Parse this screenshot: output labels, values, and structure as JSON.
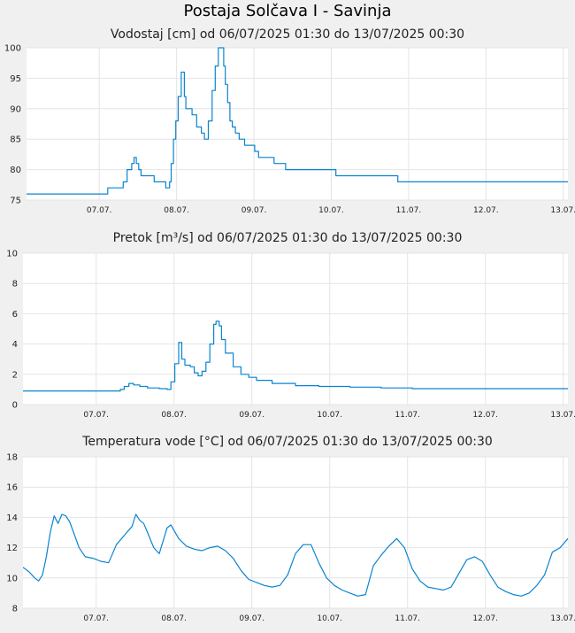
{
  "page": {
    "title": "Postaja Solčava I - Savinja"
  },
  "colors": {
    "line": "#0a84cf",
    "plot_background": "#ffffff",
    "page_background": "#f0f0f0",
    "grid": "#e4e4e4"
  },
  "chart_data": [
    {
      "type": "line",
      "title": "Vodostaj [cm] od 06/07/2025 01:30 do 13/07/2025 00:30",
      "xlabel": "",
      "ylabel": "",
      "ylim": [
        75,
        100
      ],
      "yticks": [
        75,
        80,
        85,
        90,
        95,
        100
      ],
      "xlim": [
        0,
        7.0
      ],
      "xticks": [
        {
          "x": 0.94,
          "label": "07.07."
        },
        {
          "x": 1.94,
          "label": "08.07."
        },
        {
          "x": 2.94,
          "label": "09.07."
        },
        {
          "x": 3.94,
          "label": "10.07."
        },
        {
          "x": 4.94,
          "label": "11.07."
        },
        {
          "x": 5.94,
          "label": "12.07."
        },
        {
          "x": 6.94,
          "label": "13.07."
        }
      ],
      "grid": true,
      "step": true,
      "series": [
        {
          "x": [
            0,
            1.04,
            1.05,
            1.24,
            1.25,
            1.3,
            1.33,
            1.36,
            1.39,
            1.42,
            1.45,
            1.48,
            1.55,
            1.65,
            1.66,
            1.78,
            1.8,
            1.85,
            1.87,
            1.9,
            1.93,
            1.96,
            2.0,
            2.04,
            2.06,
            2.08,
            2.11,
            2.14,
            2.2,
            2.26,
            2.3,
            2.35,
            2.4,
            2.44,
            2.48,
            2.52,
            2.55,
            2.57,
            2.6,
            2.63,
            2.66,
            2.7,
            2.75,
            2.82,
            2.9,
            2.95,
            3.0,
            3.1,
            3.2,
            3.25,
            3.35,
            3.45,
            3.6,
            3.75,
            3.9,
            4.0,
            4.02,
            4.1,
            4.15,
            4.3,
            4.6,
            4.7,
            4.8,
            4.9,
            5.1,
            5.5,
            5.9,
            6.3,
            6.6,
            6.7,
            7.0
          ],
          "y": [
            76,
            76,
            77,
            77,
            78,
            80,
            80,
            81,
            82,
            81,
            80,
            79,
            79,
            78,
            78,
            78,
            77,
            78,
            81,
            85,
            88,
            92,
            96,
            92,
            90,
            90,
            90,
            89,
            87,
            86,
            85,
            88,
            93,
            97,
            100,
            100,
            97,
            94,
            91,
            88,
            87,
            86,
            85,
            84,
            84,
            83,
            82,
            82,
            81,
            81,
            80,
            80,
            80,
            80,
            80,
            79,
            79,
            79,
            79,
            79,
            79,
            79,
            78,
            78,
            78,
            78,
            78,
            78,
            78,
            78,
            78
          ]
        }
      ]
    },
    {
      "type": "line",
      "title": "Pretok [m³/s] od 06/07/2025 01:30 do 13/07/2025 00:30",
      "xlabel": "",
      "ylabel": "",
      "ylim": [
        0,
        10
      ],
      "yticks": [
        0,
        2,
        4,
        6,
        8,
        10
      ],
      "xlim": [
        0,
        7.0
      ],
      "xticks": [
        {
          "x": 0.94,
          "label": "07.07."
        },
        {
          "x": 1.94,
          "label": "08.07."
        },
        {
          "x": 2.94,
          "label": "09.07."
        },
        {
          "x": 3.94,
          "label": "10.07."
        },
        {
          "x": 4.94,
          "label": "11.07."
        },
        {
          "x": 5.94,
          "label": "12.07."
        },
        {
          "x": 6.94,
          "label": "13.07."
        }
      ],
      "grid": true,
      "step": true,
      "series": [
        {
          "x": [
            0,
            1.0,
            1.25,
            1.3,
            1.36,
            1.42,
            1.5,
            1.6,
            1.75,
            1.85,
            1.9,
            1.95,
            2.0,
            2.04,
            2.08,
            2.15,
            2.2,
            2.25,
            2.3,
            2.35,
            2.4,
            2.45,
            2.48,
            2.52,
            2.55,
            2.6,
            2.7,
            2.8,
            2.9,
            3.0,
            3.2,
            3.5,
            3.8,
            4.2,
            4.6,
            5.0,
            5.5,
            6.0,
            6.5,
            7.0
          ],
          "y": [
            0.9,
            0.9,
            1.0,
            1.2,
            1.4,
            1.3,
            1.2,
            1.1,
            1.05,
            1.0,
            1.5,
            2.7,
            4.1,
            3.0,
            2.6,
            2.5,
            2.1,
            1.9,
            2.2,
            2.8,
            4.0,
            5.3,
            5.5,
            5.2,
            4.3,
            3.4,
            2.5,
            2.0,
            1.8,
            1.6,
            1.4,
            1.25,
            1.2,
            1.15,
            1.1,
            1.05,
            1.05,
            1.05,
            1.05,
            1.05
          ]
        }
      ]
    },
    {
      "type": "line",
      "title": "Temperatura vode [°C] od 06/07/2025 01:30 do 13/07/2025 00:30",
      "xlabel": "",
      "ylabel": "",
      "ylim": [
        8,
        18
      ],
      "yticks": [
        8,
        10,
        12,
        14,
        16,
        18
      ],
      "xlim": [
        0,
        7.0
      ],
      "xticks": [
        {
          "x": 0.94,
          "label": "07.07."
        },
        {
          "x": 1.94,
          "label": "08.07."
        },
        {
          "x": 2.94,
          "label": "09.07."
        },
        {
          "x": 3.94,
          "label": "10.07."
        },
        {
          "x": 4.94,
          "label": "11.07."
        },
        {
          "x": 5.94,
          "label": "12.07."
        },
        {
          "x": 6.94,
          "label": "13.07."
        }
      ],
      "grid": true,
      "step": false,
      "series": [
        {
          "x": [
            0,
            0.08,
            0.15,
            0.2,
            0.25,
            0.3,
            0.35,
            0.4,
            0.45,
            0.5,
            0.55,
            0.6,
            0.65,
            0.72,
            0.8,
            0.9,
            1.0,
            1.1,
            1.2,
            1.3,
            1.4,
            1.45,
            1.5,
            1.55,
            1.6,
            1.68,
            1.75,
            1.85,
            1.9,
            2.0,
            2.1,
            2.2,
            2.3,
            2.4,
            2.5,
            2.6,
            2.7,
            2.8,
            2.9,
            3.0,
            3.1,
            3.2,
            3.3,
            3.4,
            3.5,
            3.6,
            3.7,
            3.8,
            3.9,
            4.0,
            4.1,
            4.2,
            4.3,
            4.4,
            4.5,
            4.6,
            4.7,
            4.8,
            4.9,
            5.0,
            5.1,
            5.2,
            5.3,
            5.4,
            5.5,
            5.6,
            5.7,
            5.8,
            5.9,
            6.0,
            6.1,
            6.2,
            6.3,
            6.4,
            6.5,
            6.6,
            6.7,
            6.8,
            6.9,
            7.0
          ],
          "y": [
            10.7,
            10.4,
            10.0,
            9.8,
            10.2,
            11.4,
            13.0,
            14.1,
            13.6,
            14.2,
            14.1,
            13.7,
            13.0,
            12.0,
            11.4,
            11.3,
            11.1,
            11.0,
            12.2,
            12.8,
            13.4,
            14.2,
            13.8,
            13.6,
            13.0,
            12.0,
            11.6,
            13.3,
            13.5,
            12.6,
            12.1,
            11.9,
            11.8,
            12.0,
            12.1,
            11.8,
            11.3,
            10.5,
            9.9,
            9.7,
            9.5,
            9.4,
            9.5,
            10.2,
            11.6,
            12.2,
            12.2,
            11.0,
            10.0,
            9.5,
            9.2,
            9.0,
            8.8,
            8.9,
            10.8,
            11.5,
            12.1,
            12.6,
            12.0,
            10.6,
            9.8,
            9.4,
            9.3,
            9.2,
            9.4,
            10.3,
            11.2,
            11.4,
            11.1,
            10.2,
            9.4,
            9.1,
            8.9,
            8.8,
            9.0,
            9.5,
            10.2,
            11.7,
            12.0,
            12.6
          ]
        }
      ]
    }
  ]
}
